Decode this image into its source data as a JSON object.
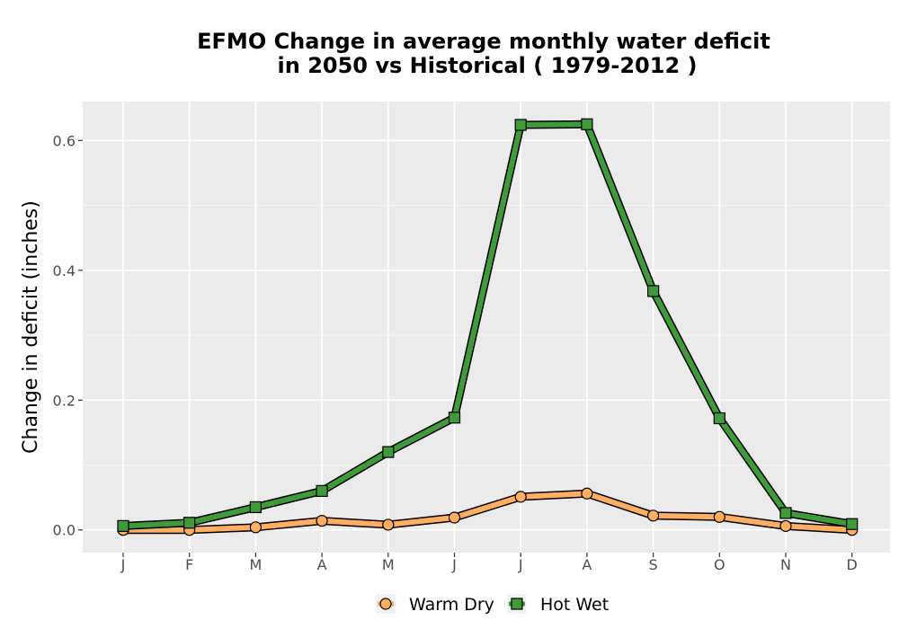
{
  "chart_data": {
    "type": "line",
    "title_lines": [
      "EFMO  Change in average monthly water deficit",
      "in 2050 vs Historical ( 1979-2012 )"
    ],
    "ylabel": "Change in deficit (inches)",
    "xlabel": "",
    "categories": [
      "J",
      "F",
      "M",
      "A",
      "M",
      "J",
      "J",
      "A",
      "S",
      "O",
      "N",
      "D"
    ],
    "y_ticks": [
      "0.0",
      "0.2",
      "0.4",
      "0.6"
    ],
    "ylim": [
      -0.035,
      0.66
    ],
    "grid": true,
    "legend_position": "bottom",
    "series": [
      {
        "name": "Warm Dry",
        "marker": "circle",
        "color": "#fdae61",
        "values": [
          0.0,
          0.0,
          0.004,
          0.014,
          0.008,
          0.019,
          0.051,
          0.056,
          0.022,
          0.02,
          0.006,
          0.0
        ]
      },
      {
        "name": "Hot Wet",
        "marker": "square",
        "color": "#3f9b3a",
        "values": [
          0.006,
          0.011,
          0.035,
          0.06,
          0.12,
          0.173,
          0.624,
          0.625,
          0.368,
          0.172,
          0.026,
          0.009
        ]
      }
    ]
  }
}
